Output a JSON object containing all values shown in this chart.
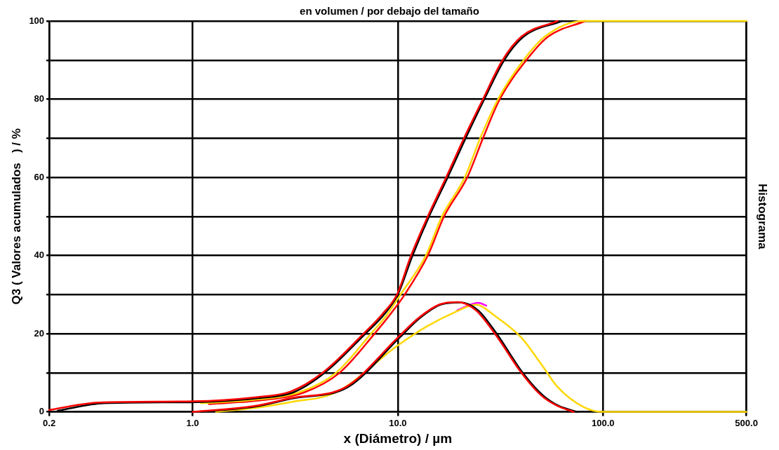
{
  "chart_data": {
    "type": "line",
    "title": "en volumen / por debajo del tamaño",
    "xlabel": "x (Diámetro) / µm",
    "ylabel": "Q3 ( Valores acumulados   ) / %",
    "y2label": "Histograma",
    "log": "x",
    "xlim": [
      0.2,
      500
    ],
    "xticks": [
      {
        "value": 0.2,
        "label": "0.2"
      },
      {
        "value": 1,
        "label": "1.0"
      },
      {
        "value": 10,
        "label": "10.0"
      },
      {
        "value": 100,
        "label": "100.0"
      },
      {
        "value": 500,
        "label": "500.0"
      }
    ],
    "ylim": [
      0,
      100
    ],
    "yticks": [
      0,
      {
        "value": 10,
        "label": null
      },
      20,
      {
        "value": 30,
        "label": null
      },
      40,
      {
        "value": 50,
        "label": null
      },
      60,
      {
        "value": 70,
        "label": null
      },
      80,
      {
        "value": 90,
        "label": null
      },
      100
    ],
    "grid": true,
    "legend": false,
    "marker": "none",
    "line_style": "solid",
    "series": [
      {
        "color": "#ff0000",
        "x": [
          0.2,
          0.35,
          1,
          2,
          3,
          4.3,
          6.8,
          8.4,
          9.9,
          11.6,
          14,
          17.2,
          21,
          26,
          32.4,
          40,
          60
        ],
        "values": [
          0.5,
          2.4,
          2.7,
          3.7,
          5.2,
          10,
          20,
          25,
          30,
          40,
          50,
          60,
          70,
          80,
          90,
          96,
          100
        ]
      },
      {
        "color": "#000000",
        "x": [
          0.22,
          0.37,
          1.05,
          2.1,
          3.1,
          4.4,
          6.95,
          8.6,
          10,
          11.8,
          14.2,
          17.5,
          21.4,
          26.4,
          33,
          41,
          63
        ],
        "values": [
          0.3,
          2.2,
          2.5,
          3.5,
          5,
          10,
          20,
          25,
          30,
          40,
          50,
          60,
          70,
          80,
          90,
          96,
          100
        ]
      },
      {
        "color": "#ffd700",
        "x": [
          1.1,
          2,
          3.3,
          5,
          7.4,
          8.9,
          10.3,
          13.7,
          16.4,
          21.2,
          25.2,
          30.8,
          41,
          52,
          80,
          500
        ],
        "values": [
          2.2,
          3.1,
          5,
          10,
          20,
          25,
          30,
          40,
          50,
          60,
          70,
          80,
          90,
          96,
          100,
          100
        ]
      },
      {
        "color": "#ff0000",
        "x": [
          1.2,
          2.2,
          3.5,
          5.2,
          7.7,
          9.2,
          10.8,
          14,
          16.8,
          21.8,
          26,
          31.4,
          42.3,
          54,
          82
        ],
        "values": [
          2,
          3,
          5,
          10,
          20,
          25,
          30,
          40,
          50,
          60,
          70,
          80,
          90,
          96,
          100
        ]
      },
      {
        "color": "#ff0000",
        "x": [
          1,
          2,
          3,
          5.6,
          10,
          12.6,
          16,
          19.6,
          24,
          30,
          40,
          50,
          60,
          72
        ],
        "values": [
          0,
          1.5,
          3.5,
          6.4,
          19,
          24,
          27.5,
          28.1,
          26,
          19.7,
          10,
          4.2,
          1.5,
          0
        ]
      },
      {
        "color": "#000000",
        "x": [
          1.1,
          2.05,
          3.05,
          5.7,
          10.2,
          12.8,
          16.3,
          20.2,
          24.6,
          30.6,
          40.6,
          51,
          61,
          75
        ],
        "values": [
          0,
          1.4,
          3.4,
          6.3,
          19,
          24,
          27.5,
          28,
          26,
          19.7,
          10,
          4.2,
          1.5,
          0
        ]
      },
      {
        "color": "#ffd700",
        "x": [
          1.3,
          2,
          3,
          5,
          10,
          14,
          19,
          24,
          30,
          40,
          50,
          60,
          80,
          100,
          500
        ],
        "values": [
          0,
          1,
          2.5,
          5,
          17,
          22,
          25.5,
          27.4,
          24.4,
          19,
          12.2,
          6.4,
          1.3,
          0,
          0
        ]
      },
      {
        "color": "#ff00ff",
        "x": [
          19.5,
          22,
          24.6,
          27
        ],
        "values": [
          26,
          27.2,
          27.9,
          27.2
        ]
      }
    ]
  }
}
